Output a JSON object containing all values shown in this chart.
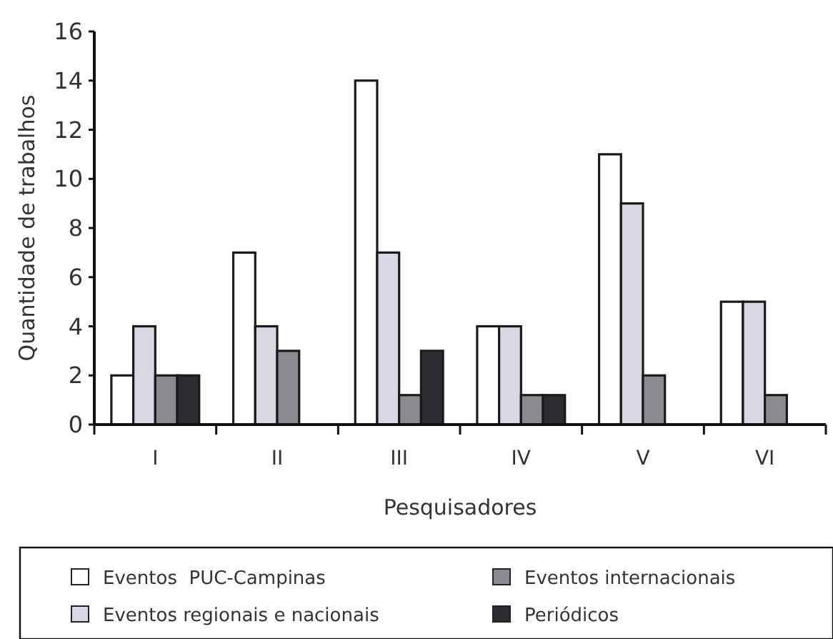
{
  "chart_data": {
    "type": "bar",
    "xlabel": "Pesquisadores",
    "ylabel": "Quantidade de trabalhos",
    "categories": [
      "I",
      "II",
      "III",
      "IV",
      "V",
      "VI"
    ],
    "series": [
      {
        "name": "Eventos  PUC-Campinas",
        "color": "#ffffff",
        "values": [
          2,
          7,
          14,
          4,
          11,
          5
        ]
      },
      {
        "name": "Eventos regionais e nacionais",
        "color": "#d8d8e4",
        "values": [
          4,
          4,
          7,
          4,
          9,
          5
        ]
      },
      {
        "name": "Eventos internacionais",
        "color": "#8a8a90",
        "values": [
          2,
          3,
          1.2,
          1.2,
          2,
          1.2
        ]
      },
      {
        "name": "Periódicos",
        "color": "#2e2c32",
        "values": [
          2,
          null,
          3,
          1.2,
          null,
          null
        ]
      }
    ],
    "ylim": [
      0,
      16
    ],
    "yticks": [
      0,
      2,
      4,
      6,
      8,
      10,
      12,
      14,
      16
    ],
    "grid": false,
    "legend": "bottom"
  }
}
